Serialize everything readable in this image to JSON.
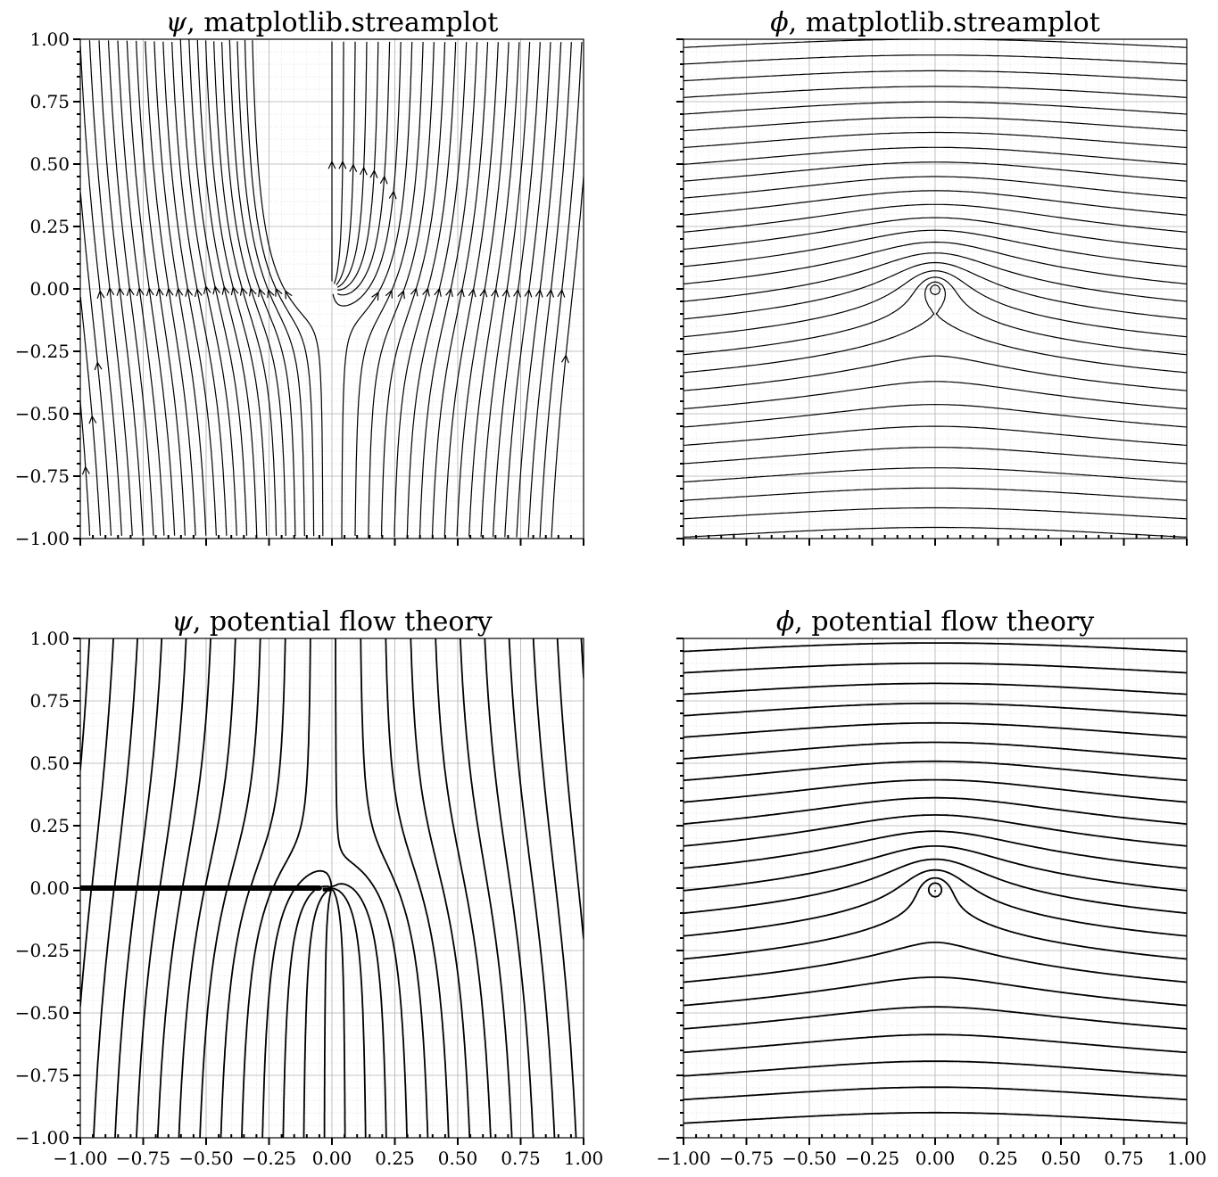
{
  "figure": {
    "background": "#ffffff",
    "line_color": "#000000",
    "grid_major_color": "#b0b0b0",
    "grid_minor_color": "#e4e4e4"
  },
  "chart_data": [
    {
      "type": "line",
      "title_symbol": "ψ",
      "title_text": ", matplotlib.streamplot",
      "field": "psi",
      "method": "streamplot",
      "arrows": true,
      "xlim": [
        -1.0,
        1.0
      ],
      "ylim": [
        -1.0,
        1.0
      ],
      "xticks": [],
      "yticks": [
        "1.00",
        "0.75",
        "0.50",
        "0.25",
        "0.00",
        "−0.25",
        "−0.50",
        "−0.75",
        "−1.00"
      ],
      "grid": true
    },
    {
      "type": "line",
      "title_symbol": "ϕ",
      "title_text": ", matplotlib.streamplot",
      "field": "phi",
      "method": "streamplot",
      "arrows": false,
      "xlim": [
        -1.0,
        1.0
      ],
      "ylim": [
        -1.0,
        1.0
      ],
      "xticks": [],
      "yticks": [],
      "grid": true
    },
    {
      "type": "line",
      "title_symbol": "ψ",
      "title_text": ", potential flow theory",
      "field": "psi",
      "method": "contour",
      "arrows": false,
      "branch_cut": {
        "x": [
          -1.0,
          -0.05
        ],
        "y": 0.0
      },
      "xlim": [
        -1.0,
        1.0
      ],
      "ylim": [
        -1.0,
        1.0
      ],
      "xticks": [
        "−1.00",
        "−0.75",
        "−0.50",
        "−0.25",
        "0.00",
        "0.25",
        "0.50",
        "0.75",
        "1.00"
      ],
      "yticks": [
        "1.00",
        "0.75",
        "0.50",
        "0.25",
        "0.00",
        "−0.25",
        "−0.50",
        "−0.75",
        "−1.00"
      ],
      "grid": true
    },
    {
      "type": "line",
      "title_symbol": "ϕ",
      "title_text": ", potential flow theory",
      "field": "phi",
      "method": "contour",
      "arrows": false,
      "xlim": [
        -1.0,
        1.0
      ],
      "ylim": [
        -1.0,
        1.0
      ],
      "xticks": [
        "−1.00",
        "−0.75",
        "−0.50",
        "−0.25",
        "0.00",
        "0.25",
        "0.50",
        "0.75",
        "1.00"
      ],
      "yticks": [],
      "grid": true
    }
  ]
}
